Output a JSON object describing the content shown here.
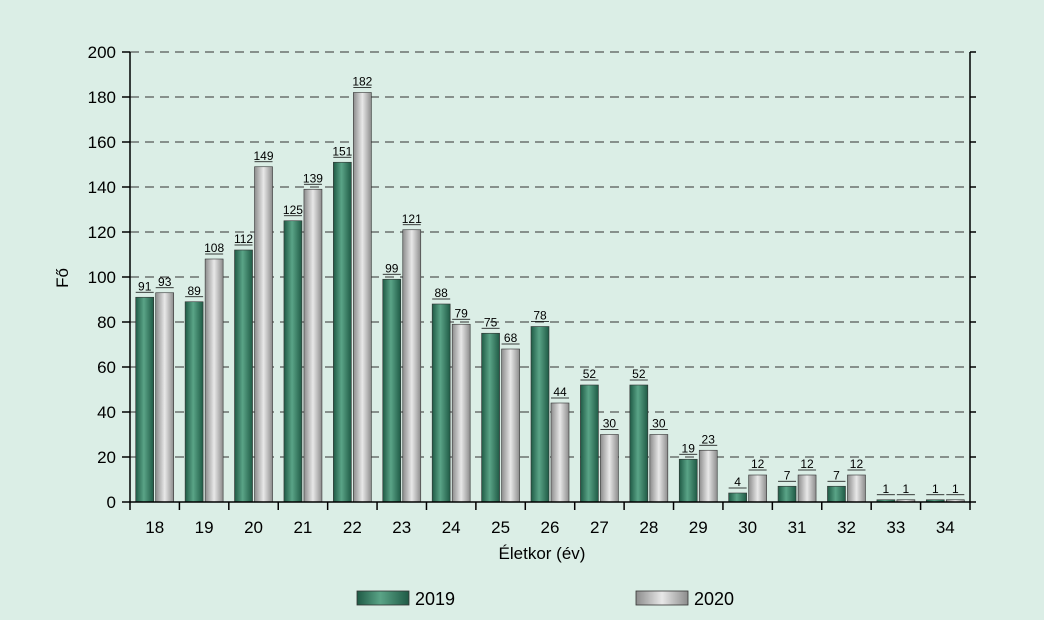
{
  "chart_data": {
    "type": "bar",
    "title": "",
    "xlabel": "Életkor (év)",
    "ylabel": "Fő",
    "ylim": [
      0,
      200
    ],
    "yticks": [
      0,
      20,
      40,
      60,
      80,
      100,
      120,
      140,
      160,
      180,
      200
    ],
    "grid": true,
    "legend_position": "bottom",
    "categories": [
      "18",
      "19",
      "20",
      "21",
      "22",
      "23",
      "24",
      "25",
      "26",
      "27",
      "28",
      "29",
      "30",
      "31",
      "32",
      "33",
      "34"
    ],
    "series": [
      {
        "name": "2019",
        "color": "#2f7d62",
        "values": [
          91,
          89,
          112,
          125,
          151,
          99,
          88,
          75,
          78,
          52,
          52,
          19,
          4,
          7,
          7,
          1,
          1
        ]
      },
      {
        "name": "2020",
        "color": "#b5b5b5",
        "values": [
          93,
          108,
          149,
          139,
          182,
          121,
          79,
          68,
          44,
          30,
          30,
          23,
          12,
          12,
          12,
          1,
          1
        ]
      }
    ]
  }
}
